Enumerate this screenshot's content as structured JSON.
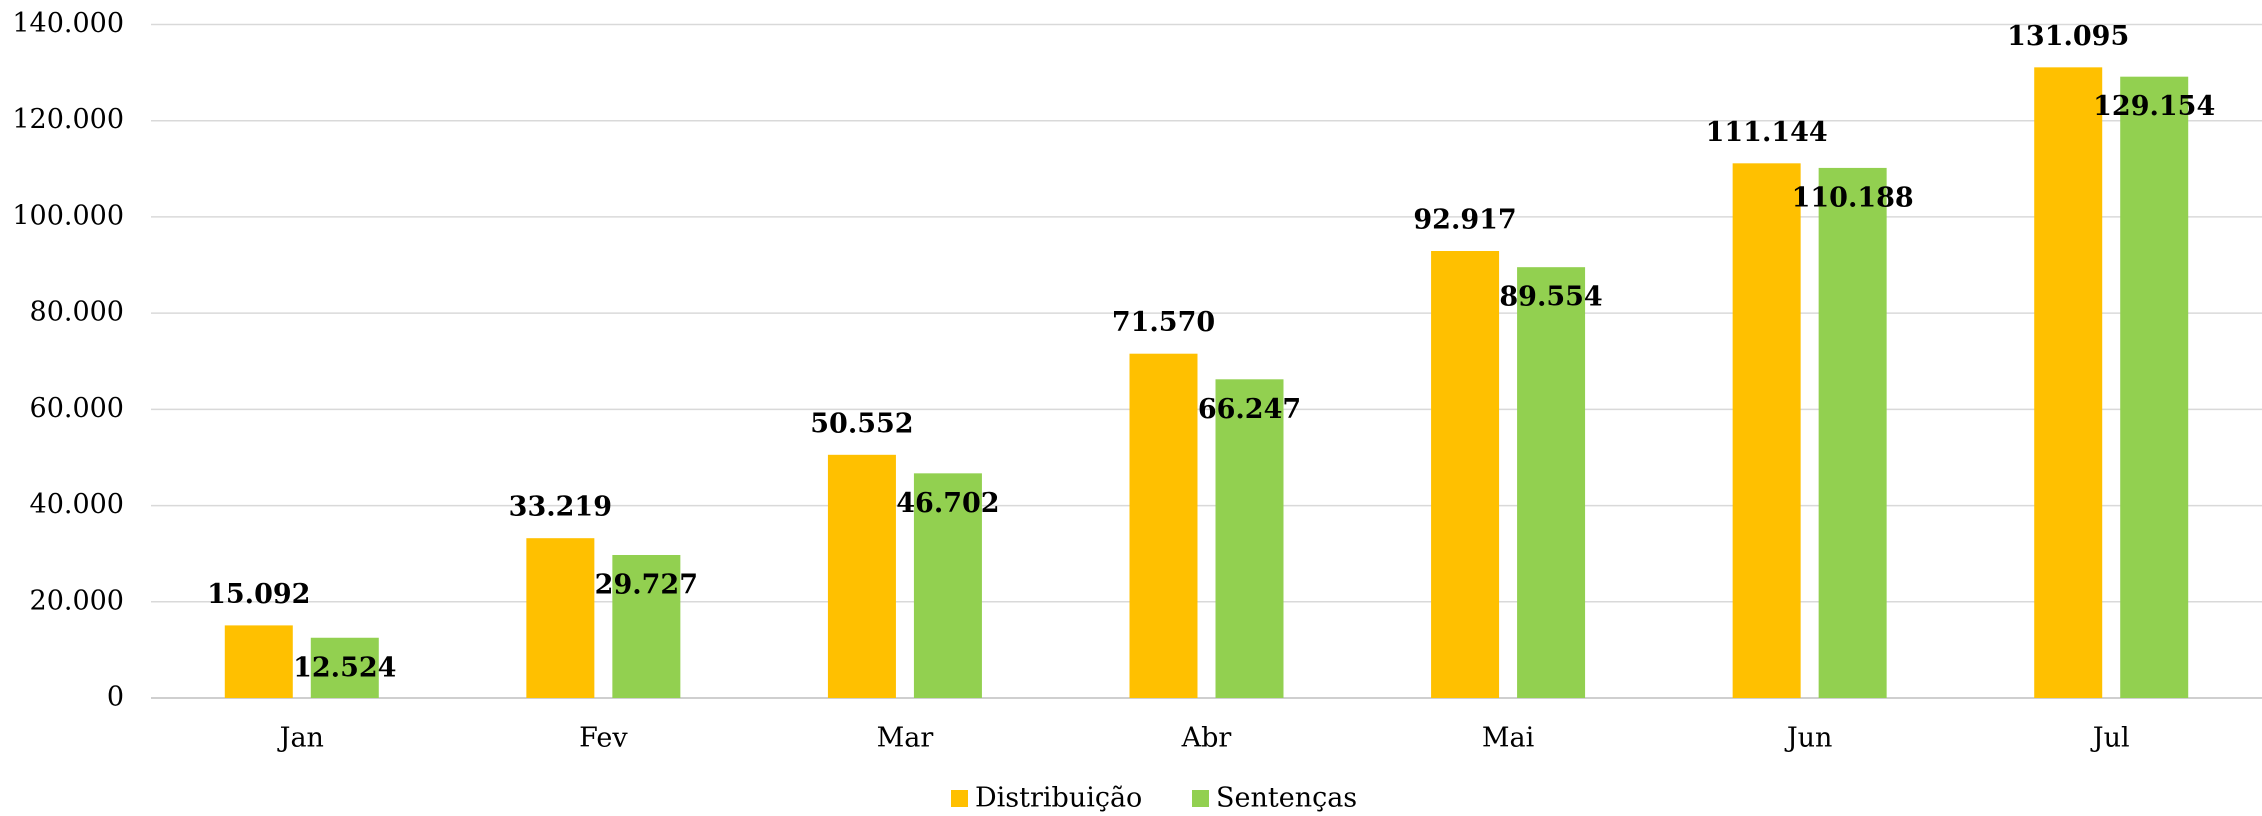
{
  "chart_data": {
    "type": "bar",
    "categories": [
      "Jan",
      "Fev",
      "Mar",
      "Abr",
      "Mai",
      "Jun",
      "Jul"
    ],
    "series": [
      {
        "name": "Distribuição",
        "color": "#FFC000",
        "values": [
          15092,
          33219,
          50552,
          71570,
          92917,
          111144,
          131095
        ],
        "value_labels": [
          "15.092",
          "33.219",
          "50.552",
          "71.570",
          "92.917",
          "111.144",
          "131.095"
        ]
      },
      {
        "name": "Sentenças",
        "color": "#92D050",
        "values": [
          12524,
          29727,
          46702,
          66247,
          89554,
          110188,
          129154
        ],
        "value_labels": [
          "12.524",
          "29.727",
          "46.702",
          "66.247",
          "89.554",
          "110.188",
          "129.154"
        ]
      }
    ],
    "ylim": [
      0,
      140000
    ],
    "yticks": [
      0,
      {
        "value": 20000,
        "label": "20.000"
      },
      {
        "value": 40000,
        "label": "40.000"
      },
      {
        "value": 60000,
        "label": "60.000"
      },
      {
        "value": 80000,
        "label": "80.000"
      },
      {
        "value": 100000,
        "label": "100.000"
      },
      {
        "value": 120000,
        "label": "120.000"
      },
      {
        "value": 140000,
        "label": "140.000"
      }
    ],
    "grid": true,
    "legend": "bottom"
  }
}
